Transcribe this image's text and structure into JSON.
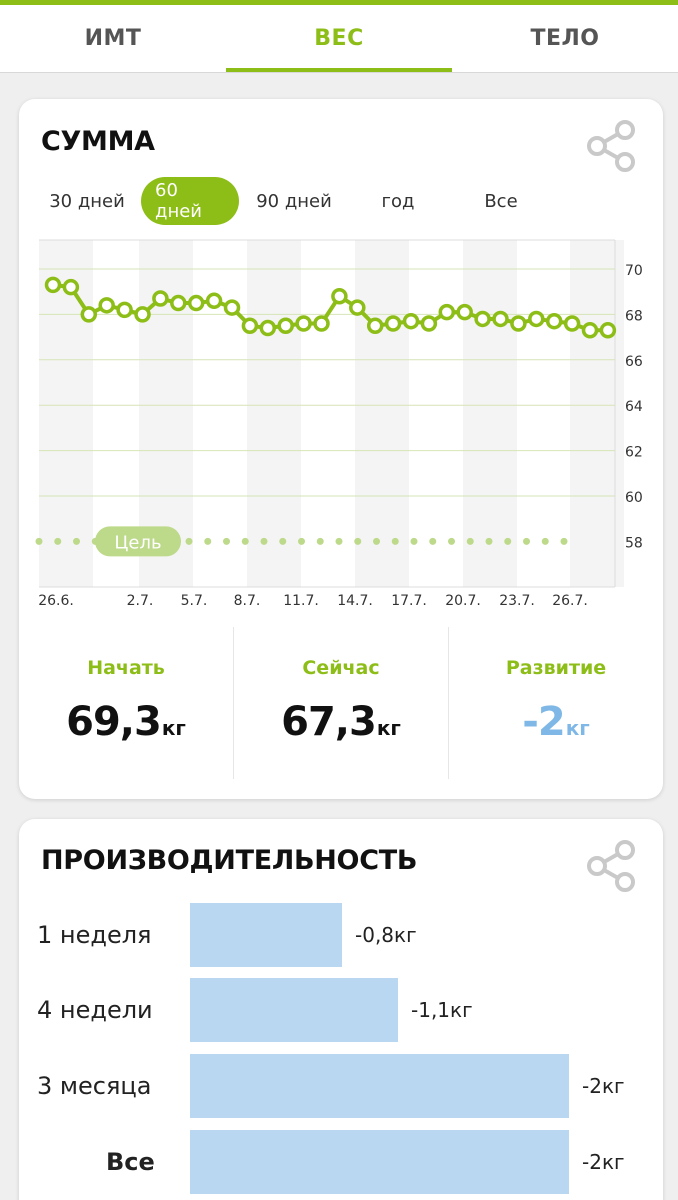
{
  "tabs": [
    {
      "label": "ИМТ",
      "active": false
    },
    {
      "label": "ВЕС",
      "active": true
    },
    {
      "label": "ТЕЛО",
      "active": false
    }
  ],
  "summary": {
    "title": "СУММА",
    "ranges": [
      {
        "label": "30 дней",
        "active": false
      },
      {
        "label": "60 дней",
        "active": true
      },
      {
        "label": "90 дней",
        "active": false
      },
      {
        "label": "год",
        "active": false
      },
      {
        "label": "Все",
        "active": false
      }
    ],
    "goal_label": "Цель",
    "stats": {
      "start": {
        "label": "Начать",
        "value": "69,3",
        "unit": "кг"
      },
      "now": {
        "label": "Сейчас",
        "value": "67,3",
        "unit": "кг"
      },
      "progress": {
        "label": "Развитие",
        "value": "-2",
        "unit": "кг"
      }
    }
  },
  "chart_data": {
    "type": "line",
    "title": "",
    "xlabel": "",
    "ylabel": "",
    "ylim": [
      56,
      71
    ],
    "yticks": [
      "70",
      "68",
      "66",
      "64",
      "62",
      "60",
      "58"
    ],
    "xticks": [
      "26.6.",
      "2.7.",
      "5.7.",
      "8.7.",
      "11.7.",
      "14.7.",
      "17.7.",
      "20.7.",
      "23.7.",
      "26.7."
    ],
    "grid": true,
    "series": [
      {
        "values": [
          69.3,
          69.2,
          68.0,
          68.4,
          68.2,
          68.0,
          68.7,
          68.5,
          68.5,
          68.6,
          68.3,
          67.5,
          67.4,
          67.5,
          67.6,
          67.6,
          68.8,
          68.3,
          67.5,
          67.6,
          67.7,
          67.6,
          68.1,
          68.1,
          67.8,
          67.8,
          67.6,
          67.8,
          67.7,
          67.6,
          67.3,
          67.3
        ]
      },
      {
        "values": [
          58,
          58,
          58,
          58,
          58,
          58,
          58,
          58,
          58,
          58,
          58,
          58,
          58,
          58,
          58,
          58,
          58,
          58,
          58,
          58,
          58,
          58,
          58,
          58,
          58,
          58,
          58,
          58,
          58,
          58
        ]
      }
    ],
    "colors": {
      "weight": "#8dbd17",
      "goal": "#bdd98a"
    }
  },
  "performance": {
    "title": "ПРОИЗВОДИТЕЛЬНОСТЬ",
    "rows": [
      {
        "label": "1 неделя",
        "value": "-0,8кг",
        "amount": 0.8,
        "bold": false
      },
      {
        "label": "4 недели",
        "value": "-1,1кг",
        "amount": 1.1,
        "bold": false
      },
      {
        "label": "3 месяца",
        "value": "-2кг",
        "amount": 2.0,
        "bold": false
      },
      {
        "label": "Все",
        "value": "-2кг",
        "amount": 2.0,
        "bold": true
      }
    ]
  },
  "colors": {
    "accent": "#8dbd17",
    "progress": "#7fb8e6",
    "bar": "#b9d7f0"
  }
}
